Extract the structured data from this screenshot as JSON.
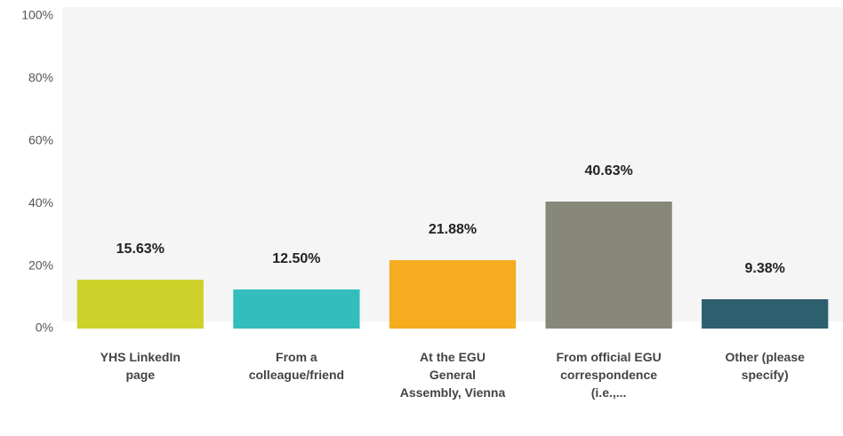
{
  "chart_data": {
    "type": "bar",
    "categories": [
      "YHS LinkedIn page",
      "From a colleague/friend",
      "At the EGU General Assembly, Vienna",
      "From official EGU correspondence (i.e.,...",
      "Other (please specify)"
    ],
    "values": [
      15.63,
      12.5,
      21.88,
      40.63,
      9.38
    ],
    "value_labels": [
      "15.63%",
      "12.50%",
      "21.88%",
      "40.63%",
      "9.38%"
    ],
    "colors": [
      "#cdd12a",
      "#33bdbd",
      "#f5ac1f",
      "#87887a",
      "#2d5f6e"
    ],
    "ylim": [
      0,
      100
    ],
    "yticks": [
      {
        "value": 0,
        "label": "0%"
      },
      {
        "value": 20,
        "label": "20%"
      },
      {
        "value": 40,
        "label": "40%"
      },
      {
        "value": 60,
        "label": "60%"
      },
      {
        "value": 80,
        "label": "80%"
      },
      {
        "value": 100,
        "label": "100%"
      }
    ],
    "grid": false
  }
}
